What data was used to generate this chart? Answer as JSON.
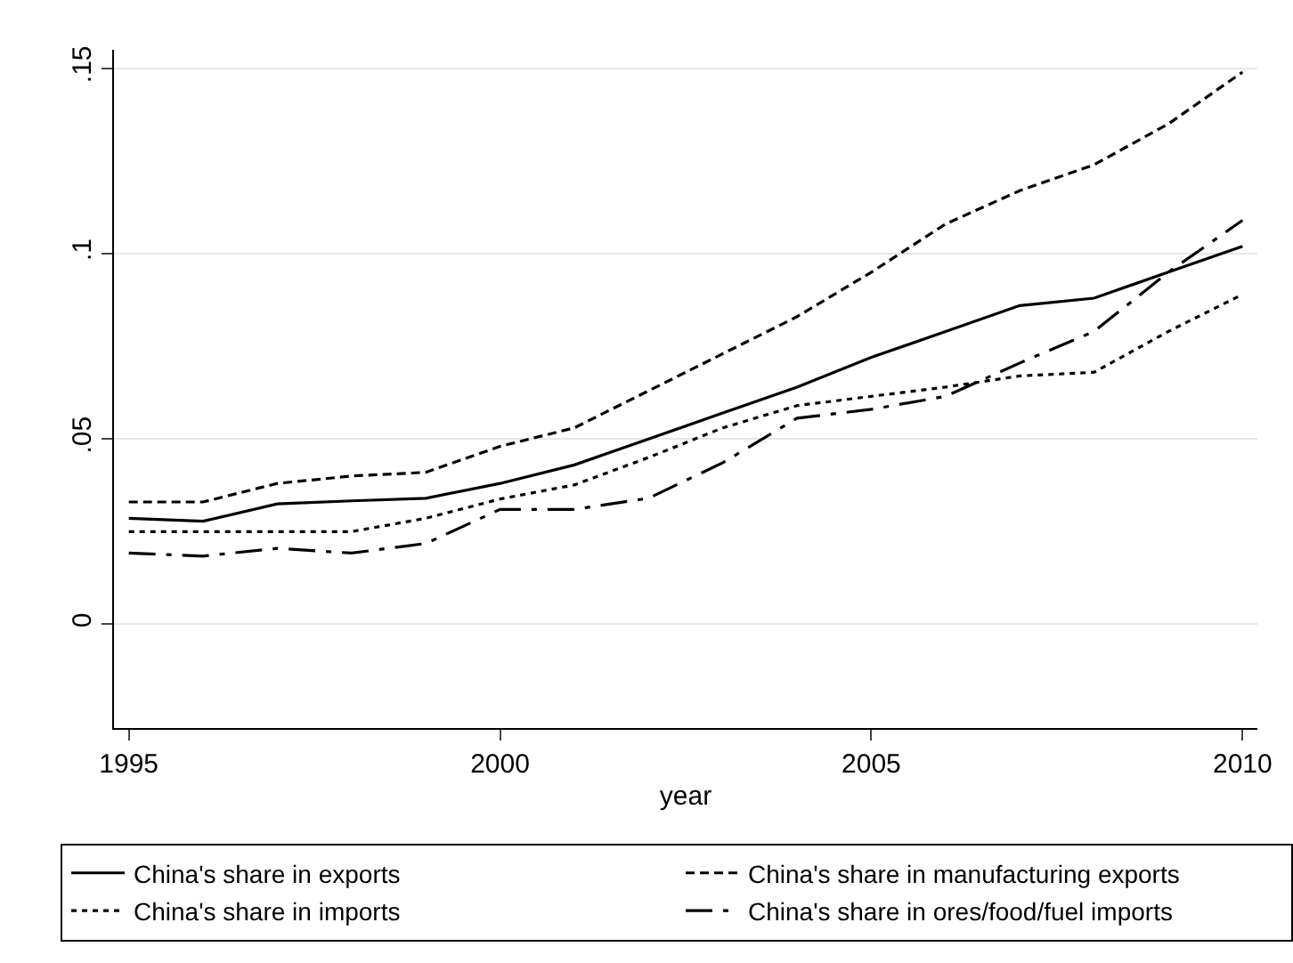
{
  "chart_data": {
    "type": "line",
    "xlabel": "year",
    "x": [
      1995,
      1996,
      1997,
      1998,
      1999,
      2000,
      2001,
      2002,
      2003,
      2004,
      2005,
      2006,
      2007,
      2008,
      2009,
      2010
    ],
    "series": [
      {
        "name": "China's share in exports",
        "color": "#000000",
        "line_style": "solid",
        "values": [
          0.0286,
          0.0278,
          0.0325,
          0.0333,
          0.034,
          0.038,
          0.043,
          0.05,
          0.057,
          0.064,
          0.072,
          0.079,
          0.086,
          0.088,
          0.095,
          0.102
        ]
      },
      {
        "name": "China's share in manufacturing exports",
        "color": "#000000",
        "line_style": "dashed",
        "values": [
          0.033,
          0.033,
          0.038,
          0.04,
          0.041,
          0.048,
          0.053,
          0.063,
          0.073,
          0.083,
          0.095,
          0.108,
          0.117,
          0.124,
          0.135,
          0.149
        ]
      },
      {
        "name": "China's share in imports",
        "color": "#000000",
        "line_style": "dotted",
        "values": [
          0.025,
          0.025,
          0.025,
          0.025,
          0.0286,
          0.0338,
          0.0376,
          0.045,
          0.053,
          0.059,
          0.0615,
          0.064,
          0.067,
          0.068,
          0.079,
          0.089
        ]
      },
      {
        "name": "China's share in ores/food/fuel imports",
        "color": "#000000",
        "line_style": "dashdot",
        "values": [
          0.0192,
          0.0184,
          0.0205,
          0.0192,
          0.0218,
          0.031,
          0.031,
          0.034,
          0.0436,
          0.0556,
          0.058,
          0.0615,
          0.0705,
          0.079,
          0.095,
          0.109
        ]
      }
    ],
    "xlim": [
      1994.8,
      2010.2
    ],
    "ylim": [
      -0.028,
      0.155
    ],
    "xticks": [
      1995,
      2000,
      2005,
      2010
    ],
    "yticks": [
      0,
      {
        "value": 0.05,
        "label": ".05"
      },
      {
        "value": 0.1,
        "label": ".1"
      },
      {
        "value": 0.15,
        "label": ".15"
      }
    ],
    "grid": "y",
    "legend": "bottom",
    "marker": "none"
  }
}
